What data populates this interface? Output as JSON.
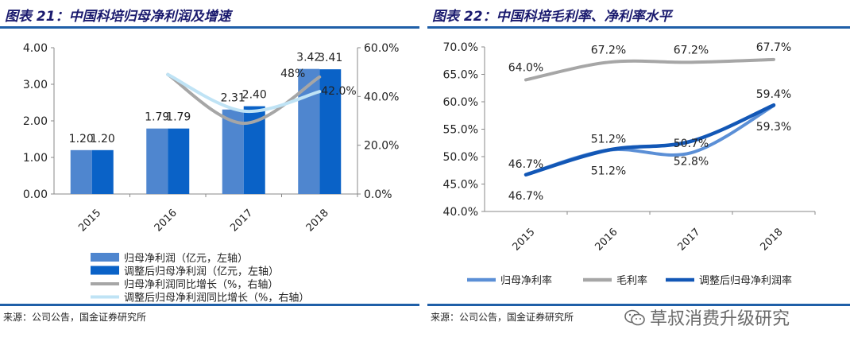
{
  "chart_data": [
    {
      "type": "bar",
      "title": "图表 21：中国科培归母净利润及增速",
      "categories": [
        "2015",
        "2016",
        "2017",
        "2018"
      ],
      "ylim": [
        0,
        4
      ],
      "y_ticks": [
        "4.00",
        "3.00",
        "2.00",
        "1.00",
        "0.00"
      ],
      "y2lim": [
        0,
        60
      ],
      "y2_ticks": [
        "60.0%",
        "40.0%",
        "20.0%",
        "0.0%"
      ],
      "series": [
        {
          "name": "归母净利润（亿元，左轴）",
          "kind": "bar",
          "axis": "left",
          "color": "#4f86cf",
          "values": [
            1.2,
            1.79,
            2.31,
            3.42
          ],
          "labels": [
            "1.20",
            "1.79",
            "2.31",
            "3.42"
          ]
        },
        {
          "name": "调整后归母净利润（亿元，左轴）",
          "kind": "bar",
          "axis": "left",
          "color": "#0a62c7",
          "values": [
            1.2,
            1.79,
            2.4,
            3.41
          ],
          "labels": [
            "1.20",
            "1.79",
            "2.40",
            "3.41"
          ]
        },
        {
          "name": "归母净利润同比增长（%，右轴）",
          "kind": "line",
          "axis": "right",
          "color": "#a6a6a6",
          "values": [
            null,
            49,
            29,
            48
          ],
          "labels": [
            null,
            null,
            null,
            "48%"
          ]
        },
        {
          "name": "调整后归母净利润同比增长（%，右轴）",
          "kind": "line",
          "axis": "right",
          "color": "#bfe3f5",
          "values": [
            null,
            49,
            34,
            42
          ],
          "labels": [
            null,
            null,
            null,
            "42.0%"
          ]
        }
      ],
      "grid": false,
      "legend_position": "bottom",
      "source": "来源：公司公告，国金证券研究所"
    },
    {
      "type": "line",
      "title": "图表 22：中国科培毛利率、净利率水平",
      "categories": [
        "2015",
        "2016",
        "2017",
        "2018"
      ],
      "ylim": [
        40,
        70
      ],
      "y_ticks": [
        "70.0%",
        "65.0%",
        "60.0%",
        "55.0%",
        "50.0%",
        "45.0%",
        "40.0%"
      ],
      "series": [
        {
          "name": "归母净利率",
          "color": "#5b8fd6",
          "values": [
            46.7,
            51.2,
            50.7,
            59.3
          ],
          "labels": [
            "46.7%",
            "51.2%",
            "50.7%",
            "59.3%"
          ]
        },
        {
          "name": "毛利率",
          "color": "#a6a6a6",
          "values": [
            64.0,
            67.2,
            67.2,
            67.7
          ],
          "labels": [
            "64.0%",
            "67.2%",
            "67.2%",
            "67.7%"
          ]
        },
        {
          "name": "调整后归母净利润率",
          "color": "#1257b6",
          "values": [
            46.7,
            51.2,
            52.8,
            59.4
          ],
          "labels": [
            "46.7%",
            "51.2%",
            "52.8%",
            "59.4%"
          ]
        }
      ],
      "grid": false,
      "legend_position": "bottom",
      "source": "来源：公司公告，国金证券研究所"
    }
  ],
  "watermark": "草叔消费升级研究"
}
